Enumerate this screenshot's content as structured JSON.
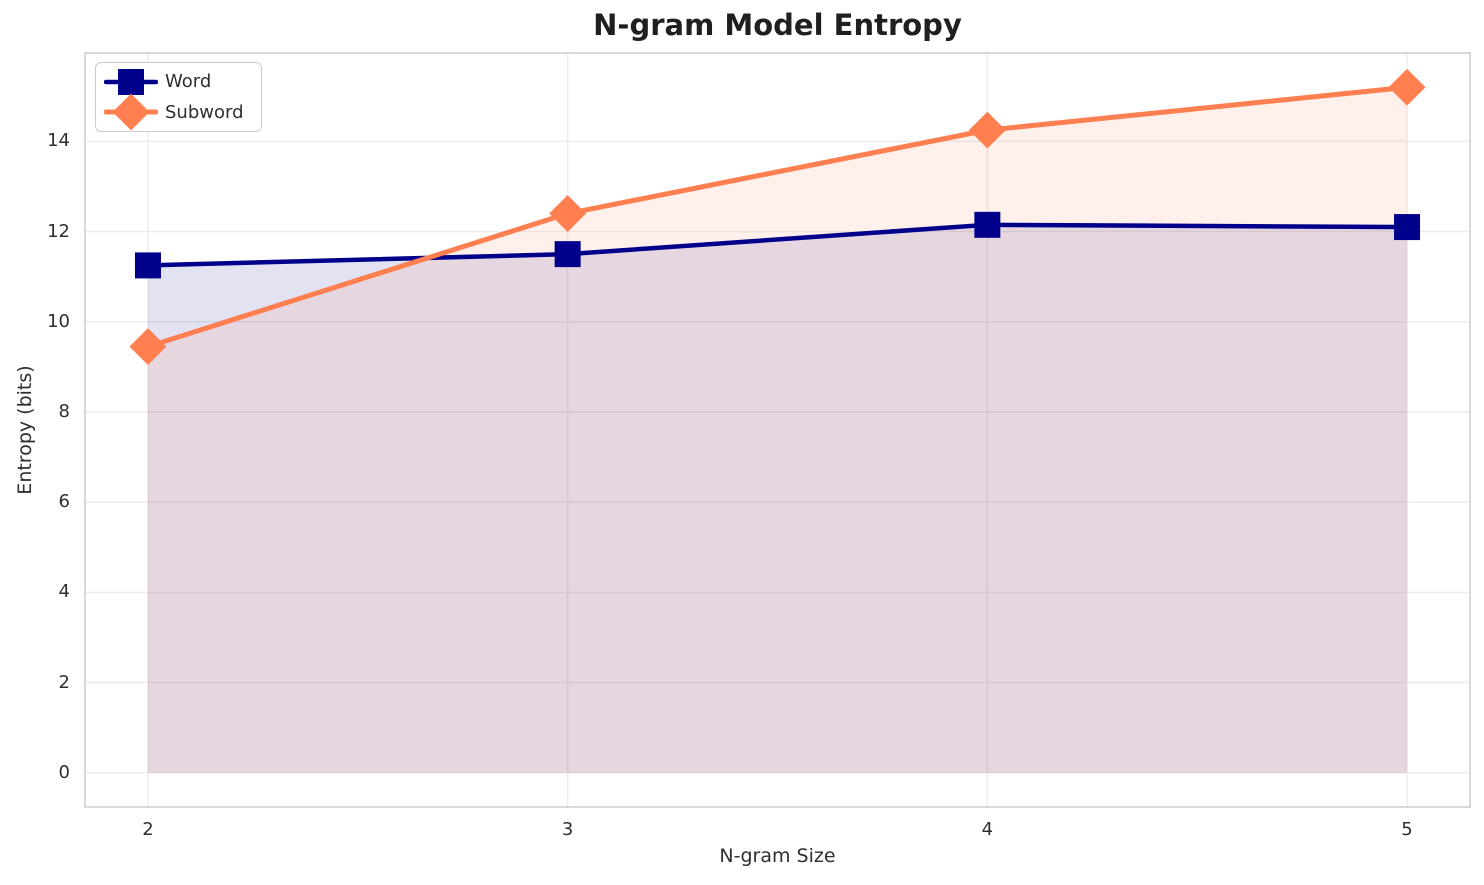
{
  "chart_data": {
    "type": "line",
    "title": "N-gram Model Entropy",
    "xlabel": "N-gram Size",
    "ylabel": "Entropy (bits)",
    "x": [
      2,
      3,
      4,
      5
    ],
    "series": [
      {
        "name": "Word",
        "values": [
          11.25,
          11.5,
          12.15,
          12.1
        ],
        "color": "#00008B",
        "marker": "square",
        "fill_to_zero": true
      },
      {
        "name": "Subword",
        "values": [
          9.45,
          12.4,
          14.25,
          15.2
        ],
        "color": "#FF7F50",
        "marker": "diamond",
        "fill_to_zero": true
      }
    ],
    "xticks": [
      "2",
      "3",
      "4",
      "5"
    ],
    "xtick_values": [
      2,
      3,
      4,
      5
    ],
    "yticks": [
      "0",
      "2",
      "4",
      "6",
      "8",
      "10",
      "12",
      "14"
    ],
    "ytick_values": [
      0,
      2,
      4,
      6,
      8,
      10,
      12,
      14
    ],
    "xlim": [
      1.85,
      5.15
    ],
    "ylim": [
      -0.76,
      15.96
    ],
    "grid": true,
    "grid_color": "#ececec",
    "spine_color": "#cccccc",
    "background_color": "#ffffff",
    "legend_position": "upper left"
  }
}
